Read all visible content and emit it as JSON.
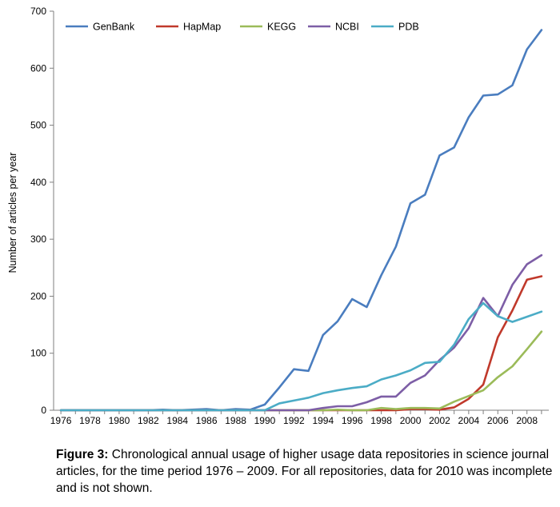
{
  "chart_data": {
    "type": "line",
    "title": "",
    "xlabel": "",
    "ylabel": "Number of articles per year",
    "ylim": [
      0,
      700
    ],
    "xlim": [
      1976,
      2009
    ],
    "grid": false,
    "legend": "top-left, horizontal",
    "y_ticks": [
      "0",
      "100",
      "200",
      "300",
      "400",
      "500",
      "600",
      "700"
    ],
    "x_ticks": [
      "1976",
      "1978",
      "1980",
      "1982",
      "1984",
      "1986",
      "1988",
      "1990",
      "1992",
      "1994",
      "1996",
      "1998",
      "2000",
      "2002",
      "2004",
      "2006",
      "2008"
    ],
    "x": [
      1976,
      1977,
      1978,
      1979,
      1980,
      1981,
      1982,
      1983,
      1984,
      1985,
      1986,
      1987,
      1988,
      1989,
      1990,
      1991,
      1992,
      1993,
      1994,
      1995,
      1996,
      1997,
      1998,
      1999,
      2000,
      2001,
      2002,
      2003,
      2004,
      2005,
      2006,
      2007,
      2008,
      2009
    ],
    "series": [
      {
        "name": "GenBank",
        "color": "#4a7dbf",
        "values": [
          0,
          0,
          0,
          0,
          0,
          0,
          0,
          1,
          0,
          1,
          2,
          0,
          2,
          1,
          10,
          40,
          72,
          69,
          132,
          156,
          195,
          181,
          237,
          287,
          363,
          378,
          447,
          461,
          514,
          552,
          554,
          570,
          633,
          667
        ]
      },
      {
        "name": "HapMap",
        "color": "#c0392b",
        "values": [
          0,
          0,
          0,
          0,
          0,
          0,
          0,
          0,
          0,
          0,
          0,
          0,
          0,
          0,
          0,
          0,
          0,
          0,
          0,
          0,
          0,
          0,
          0,
          0,
          2,
          2,
          1,
          5,
          20,
          45,
          128,
          175,
          229,
          235
        ]
      },
      {
        "name": "KEGG",
        "color": "#9bbb59",
        "values": [
          0,
          0,
          0,
          0,
          0,
          0,
          0,
          0,
          0,
          0,
          0,
          0,
          0,
          0,
          0,
          0,
          0,
          0,
          0,
          1,
          0,
          0,
          4,
          2,
          4,
          4,
          3,
          15,
          25,
          35,
          58,
          77,
          107,
          138
        ]
      },
      {
        "name": "NCBI",
        "color": "#7d5ea6",
        "values": [
          0,
          0,
          0,
          0,
          0,
          0,
          0,
          0,
          0,
          0,
          0,
          0,
          0,
          0,
          0,
          0,
          0,
          0,
          4,
          7,
          7,
          14,
          24,
          24,
          48,
          61,
          88,
          110,
          144,
          197,
          165,
          220,
          256,
          272
        ]
      },
      {
        "name": "PDB",
        "color": "#4bacc6",
        "values": [
          0,
          0,
          0,
          0,
          0,
          0,
          0,
          0,
          0,
          0,
          0,
          0,
          0,
          0,
          0,
          12,
          17,
          22,
          30,
          35,
          39,
          42,
          54,
          61,
          70,
          83,
          85,
          115,
          160,
          188,
          165,
          155,
          164,
          173
        ]
      }
    ]
  },
  "caption": {
    "label": "Figure 3:",
    "text": " Chronological annual usage of higher usage data repositories in science journal articles, for the time period 1976 – 2009.  For all repositories, data for 2010 was incomplete and is not shown."
  }
}
